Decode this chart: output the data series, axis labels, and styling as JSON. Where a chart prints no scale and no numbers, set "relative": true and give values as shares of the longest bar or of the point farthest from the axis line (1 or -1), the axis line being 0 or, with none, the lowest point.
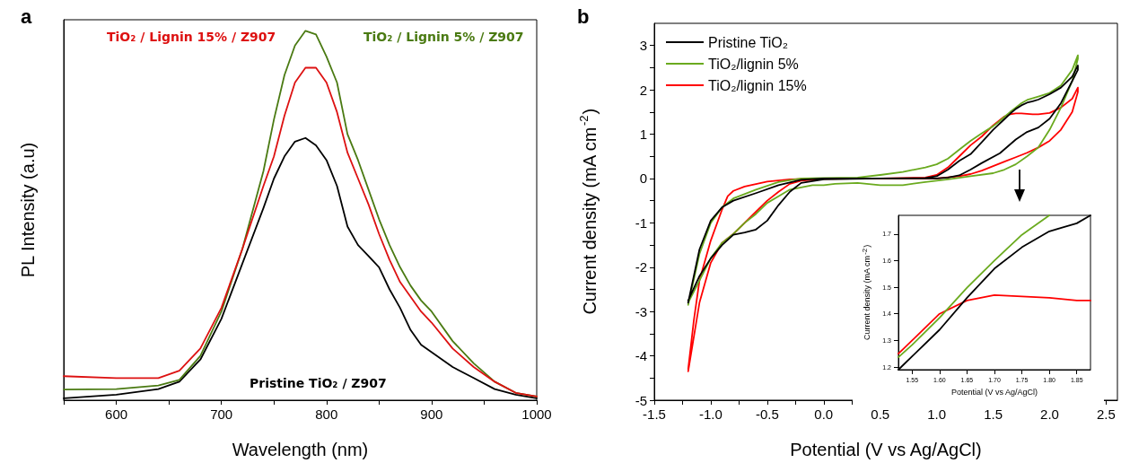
{
  "chart_data": [
    {
      "type": "line",
      "title": "a",
      "xlabel": "Wavelength (nm)",
      "ylabel": "PL Intensity (a.u)",
      "relative": true,
      "tick_labels": "x",
      "legend": false,
      "xlim": [
        550,
        1000
      ],
      "xticks": [
        {
          "value": 550,
          "label": null
        },
        600,
        {
          "value": 650,
          "label": null
        },
        700,
        {
          "value": 750,
          "label": null
        },
        800,
        {
          "value": 850,
          "label": null
        },
        900,
        {
          "value": 950,
          "label": null
        },
        1000
      ],
      "x": [
        550,
        600,
        640,
        660,
        680,
        700,
        720,
        740,
        750,
        760,
        770,
        780,
        790,
        800,
        810,
        820,
        830,
        840,
        850,
        860,
        870,
        880,
        890,
        900,
        920,
        940,
        960,
        980,
        1000
      ],
      "series": [
        {
          "name": "TiO₂ / Lignin 15% / Z907",
          "color": "#dd1111",
          "values": [
            0.065,
            0.06,
            0.06,
            0.08,
            0.14,
            0.25,
            0.41,
            0.58,
            0.66,
            0.77,
            0.86,
            0.9,
            0.9,
            0.86,
            0.78,
            0.67,
            0.6,
            0.53,
            0.45,
            0.38,
            0.32,
            0.28,
            0.24,
            0.21,
            0.14,
            0.09,
            0.05,
            0.02,
            0.01
          ]
        },
        {
          "name": "TiO₂ / Lignin 5% / Z907",
          "color": "#4a7a12",
          "values": [
            0.029,
            0.03,
            0.04,
            0.055,
            0.12,
            0.24,
            0.41,
            0.62,
            0.76,
            0.88,
            0.96,
            1.0,
            0.99,
            0.93,
            0.86,
            0.72,
            0.65,
            0.57,
            0.49,
            0.42,
            0.36,
            0.31,
            0.27,
            0.24,
            0.16,
            0.1,
            0.05,
            0.02,
            0.01
          ]
        },
        {
          "name": "Pristine TiO₂ / Z907",
          "color": "#000000",
          "values": [
            0.005,
            0.015,
            0.03,
            0.05,
            0.11,
            0.22,
            0.37,
            0.52,
            0.6,
            0.66,
            0.7,
            0.71,
            0.69,
            0.65,
            0.58,
            0.47,
            0.42,
            0.39,
            0.36,
            0.3,
            0.25,
            0.19,
            0.15,
            0.13,
            0.09,
            0.06,
            0.03,
            0.015,
            0.005
          ]
        }
      ]
    },
    {
      "type": "line",
      "title": "b",
      "xlabel": "Potential (V vs Ag/AgCl)",
      "ylabel": "Current density (mA cm$^{-2}$)",
      "legend": "top left",
      "xlim": [
        -1.5,
        2.6
      ],
      "ylim": [
        -5,
        3.5
      ],
      "xticks": [
        -1.5,
        {
          "value": -1.25,
          "label": null
        },
        {
          "value": -1,
          "label": "-1.0"
        },
        {
          "value": -0.75,
          "label": null
        },
        -0.5,
        {
          "value": -0.25,
          "label": null
        },
        {
          "value": 0,
          "label": "0.0"
        },
        {
          "value": 0.25,
          "label": null
        },
        0.5,
        {
          "value": 0.75,
          "label": null
        },
        {
          "value": 1,
          "label": "1.0"
        },
        {
          "value": 1.25,
          "label": null
        },
        1.5,
        {
          "value": 1.75,
          "label": null
        },
        {
          "value": 2,
          "label": "2.0"
        },
        {
          "value": 2.25,
          "label": null
        },
        2.5
      ],
      "yticks": [
        -5,
        {
          "value": -4.5,
          "label": null
        },
        -4,
        {
          "value": -3.5,
          "label": null
        },
        -3,
        {
          "value": -2.5,
          "label": null
        },
        -2,
        {
          "value": -1.5,
          "label": null
        },
        -1,
        {
          "value": -0.5,
          "label": null
        },
        0,
        {
          "value": 0.5,
          "label": null
        },
        1,
        {
          "value": 1.5,
          "label": null
        },
        2,
        {
          "value": 2.5,
          "label": null
        },
        3
      ],
      "series": [
        {
          "name": "Pristine TiO₂",
          "color": "#000000",
          "x": [
            -1.2,
            -1.1,
            -1.0,
            -0.9,
            -0.8,
            -0.6,
            -0.4,
            -0.2,
            0,
            0.5,
            0.9,
            1.0,
            1.1,
            1.2,
            1.3,
            1.4,
            1.5,
            1.6,
            1.65,
            1.7,
            1.75,
            1.8,
            1.85,
            1.9,
            2.0,
            2.1,
            2.2,
            2.25,
            2.25,
            2.2,
            2.1,
            2.0,
            1.9,
            1.8,
            1.7,
            1.56,
            1.4,
            1.3,
            1.2,
            1.1,
            1.0,
            0.5,
            0,
            -0.2,
            -0.3,
            -0.4,
            -0.5,
            -0.6,
            -0.7,
            -0.8,
            -0.9,
            -1.0,
            -1.1,
            -1.2
          ],
          "values": [
            -2.8,
            -1.6,
            -0.95,
            -0.65,
            -0.5,
            -0.33,
            -0.15,
            -0.03,
            0,
            0,
            0.01,
            0.05,
            0.2,
            0.4,
            0.55,
            0.82,
            1.1,
            1.34,
            1.46,
            1.57,
            1.65,
            1.71,
            1.74,
            1.78,
            1.9,
            2.05,
            2.3,
            2.55,
            2.45,
            2.2,
            1.7,
            1.35,
            1.15,
            1.05,
            0.88,
            0.57,
            0.35,
            0.2,
            0.07,
            0.02,
            0,
            0,
            -0.02,
            -0.1,
            -0.3,
            -0.6,
            -0.95,
            -1.15,
            -1.22,
            -1.27,
            -1.5,
            -1.8,
            -2.2,
            -2.75
          ]
        },
        {
          "name": "TiO₂/lignin 5%",
          "color": "#6aaa1e",
          "x": [
            -1.2,
            -1.1,
            -1.0,
            -0.9,
            -0.8,
            -0.6,
            -0.4,
            -0.2,
            0,
            0.3,
            0.5,
            0.7,
            0.9,
            1.0,
            1.1,
            1.2,
            1.3,
            1.4,
            1.5,
            1.55,
            1.6,
            1.65,
            1.7,
            1.75,
            1.8,
            1.9,
            2.0,
            2.1,
            2.2,
            2.25,
            2.25,
            2.2,
            2.1,
            2.0,
            1.9,
            1.8,
            1.7,
            1.6,
            1.5,
            1.3,
            1.1,
            0.9,
            0.7,
            0.5,
            0.3,
            0.1,
            0,
            -0.1,
            -0.2,
            -0.3,
            -0.4,
            -0.5,
            -0.6,
            -0.7,
            -0.8,
            -0.9,
            -1.0,
            -1.1,
            -1.2
          ],
          "values": [
            -2.85,
            -1.7,
            -1.0,
            -0.65,
            -0.45,
            -0.25,
            -0.08,
            0,
            0.01,
            0.02,
            0.08,
            0.15,
            0.25,
            0.32,
            0.45,
            0.65,
            0.85,
            1.02,
            1.18,
            1.28,
            1.39,
            1.5,
            1.6,
            1.7,
            1.77,
            1.85,
            1.93,
            2.1,
            2.45,
            2.78,
            2.7,
            2.2,
            1.6,
            1.1,
            0.7,
            0.5,
            0.32,
            0.2,
            0.12,
            0.05,
            -0.02,
            -0.08,
            -0.15,
            -0.15,
            -0.1,
            -0.12,
            -0.15,
            -0.15,
            -0.2,
            -0.25,
            -0.4,
            -0.55,
            -0.8,
            -1.0,
            -1.25,
            -1.45,
            -1.8,
            -2.3,
            -2.8
          ]
        },
        {
          "name": "TiO₂/lignin 15%",
          "color": "#ff0000",
          "x": [
            -1.2,
            -1.15,
            -1.1,
            -1.0,
            -0.9,
            -0.85,
            -0.8,
            -0.7,
            -0.5,
            -0.3,
            0,
            0.5,
            0.9,
            1.0,
            1.1,
            1.2,
            1.3,
            1.4,
            1.5,
            1.55,
            1.6,
            1.65,
            1.7,
            1.75,
            1.8,
            1.85,
            1.9,
            2.0,
            2.1,
            2.2,
            2.25,
            2.25,
            2.2,
            2.1,
            2.0,
            1.9,
            1.8,
            1.7,
            1.6,
            1.5,
            1.4,
            1.3,
            1.2,
            1.0,
            0.5,
            0,
            -0.2,
            -0.3,
            -0.4,
            -0.5,
            -0.6,
            -0.7,
            -0.8,
            -0.9,
            -1.0,
            -1.1,
            -1.2
          ],
          "values": [
            -4.3,
            -3.2,
            -2.3,
            -1.4,
            -0.7,
            -0.4,
            -0.28,
            -0.18,
            -0.07,
            -0.02,
            0,
            0,
            0.02,
            0.08,
            0.25,
            0.5,
            0.75,
            0.95,
            1.2,
            1.3,
            1.4,
            1.45,
            1.47,
            1.47,
            1.46,
            1.45,
            1.45,
            1.48,
            1.6,
            1.8,
            2.05,
            1.95,
            1.5,
            1.1,
            0.85,
            0.7,
            0.58,
            0.48,
            0.38,
            0.28,
            0.18,
            0.1,
            0.05,
            0,
            0,
            -0.01,
            -0.05,
            -0.12,
            -0.3,
            -0.5,
            -0.75,
            -1.0,
            -1.25,
            -1.45,
            -1.9,
            -2.8,
            -4.35
          ]
        }
      ]
    },
    {
      "type": "line",
      "xlabel": "Potential (V vs Ag/AgCl)",
      "ylabel": "Current density (mA cm$^{-2}$)",
      "legend": false,
      "xlim": [
        1.525,
        1.875
      ],
      "ylim": [
        1.19,
        1.77
      ],
      "xticks": [
        1.55,
        {
          "value": 1.6,
          "label": "1.60"
        },
        1.65,
        {
          "value": 1.7,
          "label": "1.70"
        },
        1.75,
        {
          "value": 1.8,
          "label": "1.80"
        },
        1.85
      ],
      "yticks": [
        1.2,
        1.3,
        1.4,
        1.5,
        1.6,
        1.7
      ],
      "series": [
        {
          "color": "#000000",
          "x": [
            1.525,
            1.55,
            1.6,
            1.65,
            1.7,
            1.75,
            1.8,
            1.85,
            1.875
          ],
          "values": [
            1.19,
            1.24,
            1.34,
            1.46,
            1.57,
            1.65,
            1.71,
            1.74,
            1.77
          ]
        },
        {
          "color": "#6aaa1e",
          "x": [
            1.525,
            1.55,
            1.6,
            1.65,
            1.7,
            1.75,
            1.8
          ],
          "values": [
            1.237,
            1.283,
            1.385,
            1.498,
            1.6,
            1.697,
            1.77
          ]
        },
        {
          "color": "#ff0000",
          "x": [
            1.525,
            1.55,
            1.6,
            1.65,
            1.7,
            1.75,
            1.8,
            1.85,
            1.875
          ],
          "values": [
            1.25,
            1.3,
            1.4,
            1.45,
            1.47,
            1.465,
            1.46,
            1.45,
            1.45
          ]
        }
      ]
    }
  ]
}
